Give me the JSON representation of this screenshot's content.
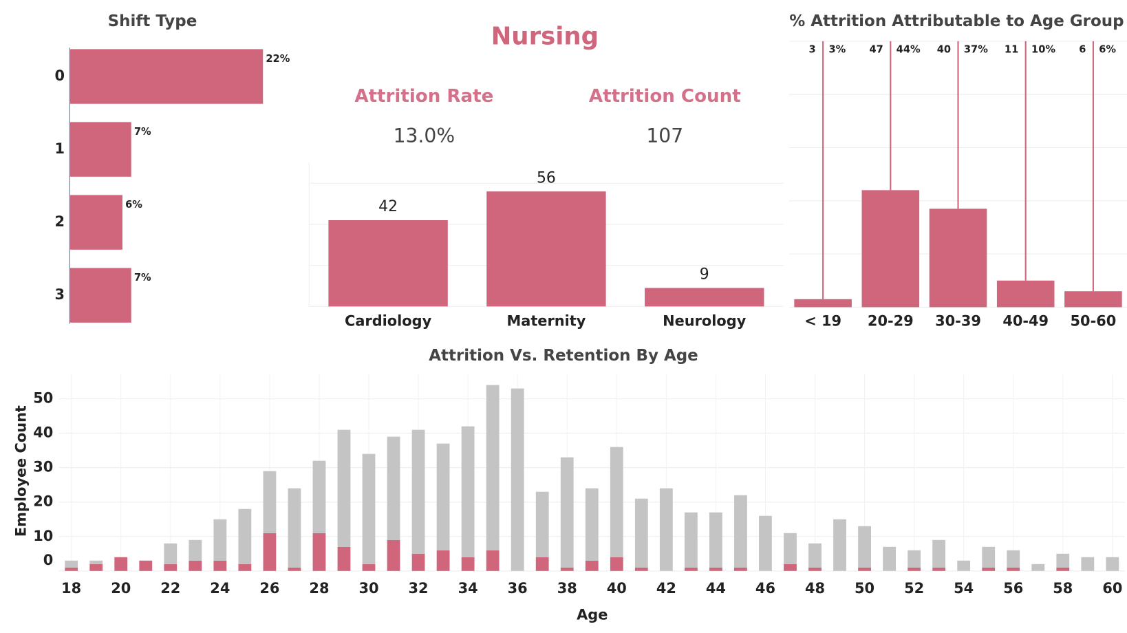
{
  "header": {
    "title": "Nursing",
    "kpis": [
      {
        "label": "Attrition Rate",
        "value": "13.0%"
      },
      {
        "label": "Attrition Count",
        "value": "107"
      }
    ]
  },
  "chart_data": [
    {
      "type": "bar",
      "orientation": "horizontal",
      "title": "Shift Type",
      "categories": [
        "0",
        "1",
        "2",
        "3"
      ],
      "values": [
        22,
        7,
        6,
        7
      ],
      "value_labels": [
        "22%",
        "7%",
        "6%",
        "7%"
      ],
      "color": "#cf667c",
      "xlim": [
        0,
        27
      ]
    },
    {
      "type": "bar",
      "categories": [
        "Cardiology",
        "Maternity",
        "Neurology"
      ],
      "values": [
        42,
        56,
        9
      ],
      "color": "#cf667c",
      "ylim": [
        0,
        70
      ],
      "yticks": [
        0,
        20,
        40,
        60
      ],
      "grid": true,
      "tick_labels": false
    },
    {
      "type": "bar",
      "title": "% Attrition Attributable to Age Group",
      "categories": [
        "< 19",
        "20-29",
        "30-39",
        "40-49",
        "50-60"
      ],
      "values": [
        3,
        44,
        37,
        10,
        6
      ],
      "value_labels": [
        "3%",
        "44%",
        "37%",
        "10%",
        "6%"
      ],
      "counts": [
        3,
        47,
        40,
        11,
        6
      ],
      "color": "#cf667c",
      "ylim": [
        0,
        100
      ],
      "yticks": [
        0,
        20,
        40,
        60,
        80,
        100
      ],
      "grid": true,
      "tick_labels": false,
      "reference_lines": true
    },
    {
      "type": "bar",
      "stacked": true,
      "title": "Attrition Vs. Retention By Age",
      "x_label": "Age",
      "y_label": "Employee Count",
      "x": [
        18,
        19,
        20,
        21,
        22,
        23,
        24,
        25,
        26,
        27,
        28,
        29,
        30,
        31,
        32,
        33,
        34,
        35,
        36,
        37,
        38,
        39,
        40,
        41,
        42,
        43,
        44,
        45,
        46,
        47,
        48,
        49,
        50,
        51,
        52,
        53,
        54,
        55,
        56,
        57,
        58,
        59,
        60
      ],
      "series": [
        {
          "color": "#cf667c",
          "values": [
            1,
            2,
            4,
            3,
            2,
            3,
            3,
            2,
            11,
            1,
            11,
            7,
            2,
            9,
            5,
            6,
            4,
            6,
            0,
            4,
            1,
            3,
            4,
            1,
            0,
            1,
            1,
            1,
            0,
            2,
            1,
            0,
            1,
            0,
            1,
            1,
            0,
            1,
            1,
            0,
            1,
            0,
            0
          ]
        },
        {
          "color": "#c4c4c4",
          "values": [
            2,
            1,
            0,
            0,
            6,
            6,
            12,
            16,
            18,
            23,
            21,
            34,
            32,
            30,
            36,
            31,
            38,
            48,
            53,
            19,
            32,
            21,
            32,
            20,
            24,
            16,
            16,
            21,
            16,
            9,
            7,
            15,
            12,
            7,
            5,
            8,
            3,
            6,
            5,
            2,
            4,
            4,
            4
          ]
        }
      ],
      "xlim": [
        17.5,
        60.5
      ],
      "xticks": [
        18,
        20,
        22,
        24,
        26,
        28,
        30,
        32,
        34,
        36,
        38,
        40,
        42,
        44,
        46,
        48,
        50,
        52,
        54,
        56,
        58,
        60
      ],
      "ylim": [
        0,
        57
      ],
      "yticks": [
        0,
        10,
        20,
        30,
        40,
        50
      ],
      "grid": true
    }
  ]
}
